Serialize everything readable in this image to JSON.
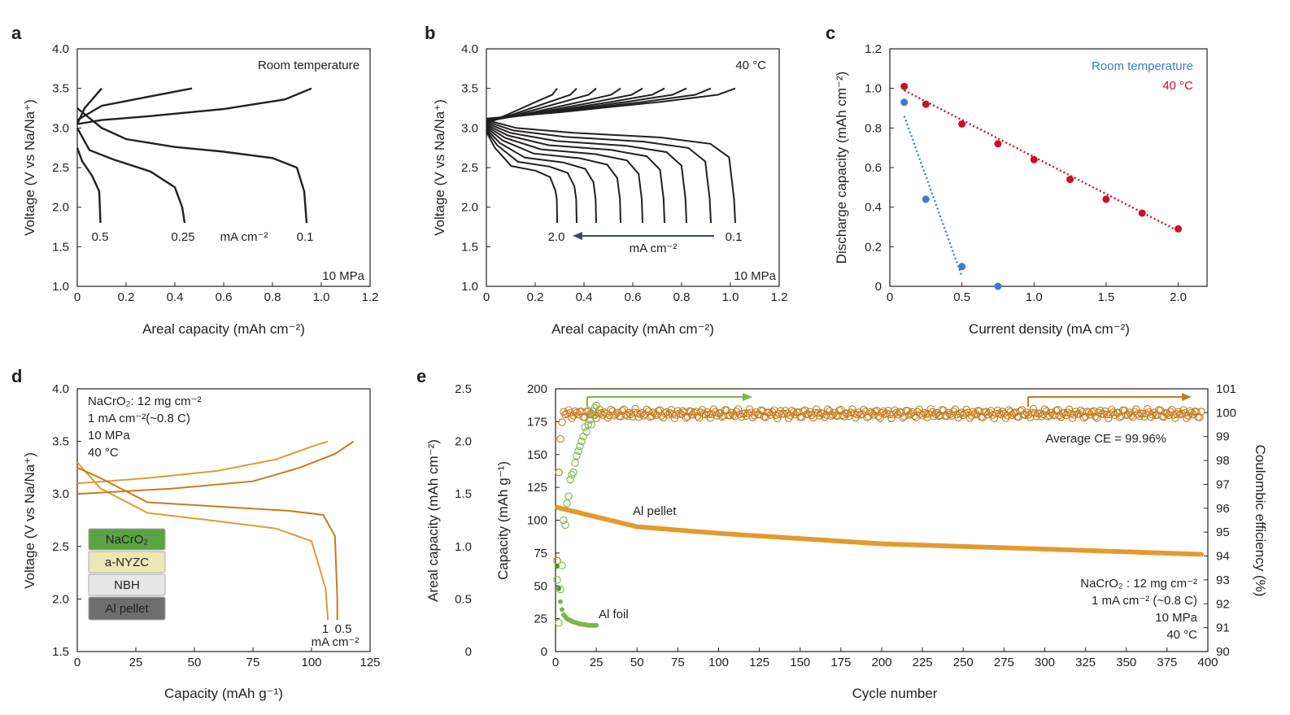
{
  "colors": {
    "black": "#231f20",
    "blue": "#3a7bd5",
    "red": "#c8102e",
    "orange": "#e39a2d",
    "dark_orange": "#c77a1c",
    "green": "#7ab648",
    "arrow_gray": "#3d4a5c",
    "dark_green": "#4a8a2a"
  },
  "chart_data": [
    {
      "panel": "a",
      "type": "line",
      "xlabel": "Areal capacity (mAh cm⁻²)",
      "ylabel": "Voltage (V vs Na/Na⁺)",
      "xlim": [
        0,
        1.2
      ],
      "ylim": [
        1.0,
        4.0
      ],
      "xticks": [
        "0",
        "0.2",
        "0.4",
        "0.6",
        "0.8",
        "1.0",
        "1.2"
      ],
      "yticks": [
        "1.0",
        "1.5",
        "2.0",
        "2.5",
        "3.0",
        "3.5",
        "4.0"
      ],
      "annotations": {
        "condition": "Room temperature",
        "pressure": "10 MPa",
        "unit": "mA cm⁻²"
      },
      "series": [
        {
          "name": "0.5",
          "charge": [
            [
              0,
              3.05
            ],
            [
              0.03,
              3.25
            ],
            [
              0.1,
              3.5
            ]
          ],
          "discharge": [
            [
              0,
              2.75
            ],
            [
              0.02,
              2.58
            ],
            [
              0.06,
              2.4
            ],
            [
              0.09,
              2.2
            ],
            [
              0.095,
              1.8
            ]
          ]
        },
        {
          "name": "0.25",
          "charge": [
            [
              0,
              3.1
            ],
            [
              0.1,
              3.28
            ],
            [
              0.3,
              3.4
            ],
            [
              0.47,
              3.5
            ]
          ],
          "discharge": [
            [
              0,
              3.0
            ],
            [
              0.05,
              2.72
            ],
            [
              0.15,
              2.6
            ],
            [
              0.3,
              2.45
            ],
            [
              0.4,
              2.25
            ],
            [
              0.43,
              2.0
            ],
            [
              0.44,
              1.8
            ]
          ]
        },
        {
          "name": "0.1",
          "charge": [
            [
              0,
              3.05
            ],
            [
              0.1,
              3.1
            ],
            [
              0.3,
              3.15
            ],
            [
              0.6,
              3.24
            ],
            [
              0.85,
              3.36
            ],
            [
              0.96,
              3.5
            ]
          ],
          "discharge": [
            [
              0,
              3.25
            ],
            [
              0.1,
              3.0
            ],
            [
              0.2,
              2.86
            ],
            [
              0.4,
              2.76
            ],
            [
              0.6,
              2.7
            ],
            [
              0.8,
              2.62
            ],
            [
              0.9,
              2.5
            ],
            [
              0.93,
              2.2
            ],
            [
              0.94,
              1.8
            ]
          ]
        }
      ]
    },
    {
      "panel": "b",
      "type": "line",
      "xlabel": "Areal capacity (mAh cm⁻²)",
      "ylabel": "Voltage (V vs Na/Na⁺)",
      "xlim": [
        0,
        1.2
      ],
      "ylim": [
        1.0,
        4.0
      ],
      "xticks": [
        "0",
        "0.2",
        "0.4",
        "0.6",
        "0.8",
        "1.0",
        "1.2"
      ],
      "yticks": [
        "1.0",
        "1.5",
        "2.0",
        "2.5",
        "3.0",
        "3.5",
        "4.0"
      ],
      "annotations": {
        "condition": "40 °C",
        "pressure": "10 MPa",
        "unit": "mA cm⁻²",
        "low_label": "0.1",
        "high_label": "2.0"
      },
      "series_end_capacities": [
        1.02,
        0.92,
        0.82,
        0.73,
        0.64,
        0.55,
        0.45,
        0.37,
        0.29
      ]
    },
    {
      "panel": "c",
      "type": "scatter",
      "xlabel": "Current density (mA cm⁻²)",
      "ylabel": "Discharge capacity (mAh cm⁻²)",
      "xlim": [
        0,
        2.2
      ],
      "ylim": [
        0,
        1.2
      ],
      "xticks": [
        "0",
        "0.5",
        "1.0",
        "1.5",
        "2.0"
      ],
      "yticks": [
        "0",
        "0.2",
        "0.4",
        "0.6",
        "0.8",
        "1.0",
        "1.2"
      ],
      "series": [
        {
          "name": "Room temperature",
          "x": [
            0.1,
            0.25,
            0.5,
            0.75
          ],
          "y": [
            0.93,
            0.44,
            0.1,
            0.0
          ]
        },
        {
          "name": "40 °C",
          "x": [
            0.1,
            0.25,
            0.5,
            0.75,
            1.0,
            1.25,
            1.5,
            1.75,
            2.0
          ],
          "y": [
            1.01,
            0.92,
            0.82,
            0.72,
            0.64,
            0.54,
            0.44,
            0.37,
            0.29
          ]
        }
      ]
    },
    {
      "panel": "d",
      "type": "line",
      "xlabel": "Capacity (mAh g⁻¹)",
      "ylabel": "Voltage (V vs Na/Na⁺)",
      "xlim": [
        0,
        125
      ],
      "ylim": [
        1.5,
        4.0
      ],
      "xticks": [
        "0",
        "25",
        "50",
        "75",
        "100",
        "125"
      ],
      "yticks": [
        "1.5",
        "2.0",
        "2.5",
        "3.0",
        "3.5",
        "4.0"
      ],
      "annotations": {
        "lines": [
          "NaCrO₂: 12 mg cm⁻²",
          "1 mA cm⁻²(~0.8 C)",
          "10 MPa",
          "40 °C"
        ],
        "curve_labels": [
          "1",
          "0.5"
        ],
        "unit": "mA cm⁻²"
      },
      "stack": [
        "NaCrO₂",
        "a-NYZC",
        "NBH",
        "Al pellet"
      ],
      "series": [
        {
          "name": "1",
          "charge": [
            [
              0,
              3.1
            ],
            [
              30,
              3.15
            ],
            [
              60,
              3.22
            ],
            [
              85,
              3.33
            ],
            [
              100,
              3.45
            ],
            [
              107,
              3.5
            ]
          ],
          "discharge": [
            [
              0,
              3.3
            ],
            [
              10,
              3.05
            ],
            [
              30,
              2.82
            ],
            [
              60,
              2.74
            ],
            [
              85,
              2.67
            ],
            [
              100,
              2.55
            ],
            [
              106,
              2.1
            ],
            [
              107,
              1.8
            ]
          ]
        },
        {
          "name": "0.5",
          "charge": [
            [
              0,
              3.0
            ],
            [
              40,
              3.05
            ],
            [
              75,
              3.12
            ],
            [
              95,
              3.25
            ],
            [
              110,
              3.38
            ],
            [
              118,
              3.5
            ]
          ],
          "discharge": [
            [
              0,
              3.25
            ],
            [
              10,
              3.15
            ],
            [
              30,
              2.92
            ],
            [
              60,
              2.88
            ],
            [
              90,
              2.84
            ],
            [
              105,
              2.8
            ],
            [
              110,
              2.6
            ],
            [
              111,
              2.0
            ],
            [
              111,
              1.8
            ]
          ]
        }
      ]
    },
    {
      "panel": "e",
      "type": "scatter",
      "xlabel": "Cycle number",
      "ylabel_left": "Capacity (mAh g⁻¹)",
      "ylabel_outer": "Areal capacity (mAh cm⁻²)",
      "ylabel_right": "Coulombic efficiency (%)",
      "xlim": [
        0,
        400
      ],
      "ylim_left": [
        0,
        200
      ],
      "ylim_outer": [
        0,
        2.5
      ],
      "ylim_right": [
        90,
        101
      ],
      "xticks": [
        "0",
        "25",
        "50",
        "75",
        "100",
        "125",
        "150",
        "175",
        "200",
        "225",
        "250",
        "275",
        "300",
        "325",
        "350",
        "375",
        "400"
      ],
      "yticks_left": [
        "0",
        "25",
        "50",
        "75",
        "100",
        "125",
        "150",
        "175",
        "200"
      ],
      "yticks_outer": [
        "0",
        "0.5",
        "1.0",
        "1.5",
        "2.0",
        "2.5"
      ],
      "yticks_right": [
        "90",
        "91",
        "92",
        "93",
        "94",
        "95",
        "96",
        "97",
        "98",
        "99",
        "100",
        "101"
      ],
      "annotations": {
        "average_ce": "Average CE = 99.96%",
        "al_pellet": "Al pellet",
        "al_foil": "Al foil",
        "lines": [
          "NaCrO₂ : 12 mg cm⁻²",
          "1 mA cm⁻² (~0.8 C)",
          "10 MPa",
          "40 °C"
        ]
      },
      "al_pellet_capacity": {
        "start": 110,
        "cycle_50": 95,
        "cycle_100": 90,
        "cycle_200": 82,
        "cycle_300": 78,
        "end": 74
      },
      "al_pellet_ce": {
        "first_cycles": [
          93.8,
          97.5,
          98.9,
          99.6
        ],
        "steady": 99.96
      },
      "al_foil_capacity": {
        "cycles": [
          1,
          2,
          3,
          4,
          5,
          7,
          10,
          15,
          20,
          25
        ],
        "values": [
          65,
          48,
          38,
          32,
          28,
          25,
          23,
          21,
          20,
          20
        ]
      },
      "al_foil_ce": {
        "cycles": [
          1,
          2,
          3,
          4,
          5,
          6,
          7,
          8,
          9,
          10,
          11,
          12,
          13,
          14,
          15,
          16,
          17,
          18,
          19,
          20,
          21,
          22,
          23,
          24,
          25
        ],
        "values": [
          93,
          91.2,
          92.6,
          93.6,
          95.5,
          95.3,
          96.2,
          96.5,
          97.2,
          97.4,
          97.5,
          97.9,
          98.2,
          98.4,
          98.6,
          98.8,
          99.0,
          99.4,
          99.2,
          99.5,
          99.7,
          99.5,
          99.9,
          100.2,
          100.3
        ]
      }
    }
  ]
}
